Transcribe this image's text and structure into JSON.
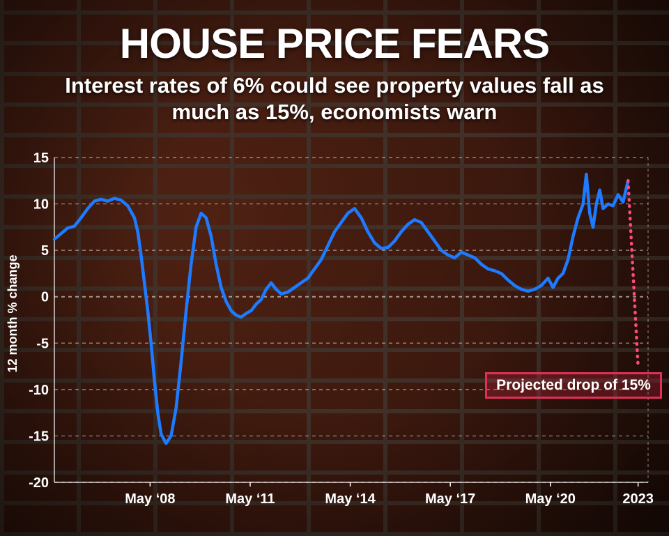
{
  "header": {
    "title": "HOUSE PRICE FEARS",
    "subtitle": "Interest rates of 6% could see property values fall as much as 15%, economists warn"
  },
  "annotation": {
    "label": "Projected drop of 15%"
  },
  "colors": {
    "line": "#1e7bff",
    "projection": "#ff4a78",
    "annotation_border": "#e0305a",
    "text": "#ffffff"
  },
  "chart_data": {
    "type": "line",
    "title": "HOUSE PRICE FEARS",
    "ylabel": "12 month % change",
    "xlabel": "",
    "ylim": [
      -20,
      15
    ],
    "yticks": [
      15,
      10,
      5,
      0,
      -5,
      -10,
      -15,
      -20
    ],
    "xticks": [
      {
        "label": "May ‘08",
        "x": 2008.37
      },
      {
        "label": "May ‘11",
        "x": 2011.37
      },
      {
        "label": "May ‘14",
        "x": 2014.37
      },
      {
        "label": "May ‘17",
        "x": 2017.37
      },
      {
        "label": "May ‘20",
        "x": 2020.37
      },
      {
        "label": "2023",
        "x": 2023.0
      }
    ],
    "xlim": [
      2005.5,
      2023.3
    ],
    "grid": "dashed horizontal",
    "series": [
      {
        "points": [
          [
            2005.5,
            6.2
          ],
          [
            2005.7,
            6.8
          ],
          [
            2005.9,
            7.4
          ],
          [
            2006.1,
            7.6
          ],
          [
            2006.3,
            8.5
          ],
          [
            2006.5,
            9.5
          ],
          [
            2006.7,
            10.3
          ],
          [
            2006.9,
            10.5
          ],
          [
            2007.1,
            10.3
          ],
          [
            2007.3,
            10.6
          ],
          [
            2007.5,
            10.4
          ],
          [
            2007.7,
            9.8
          ],
          [
            2007.9,
            8.5
          ],
          [
            2008.0,
            7.0
          ],
          [
            2008.1,
            4.5
          ],
          [
            2008.2,
            1.5
          ],
          [
            2008.3,
            -1.5
          ],
          [
            2008.4,
            -5.0
          ],
          [
            2008.5,
            -9.0
          ],
          [
            2008.6,
            -12.5
          ],
          [
            2008.7,
            -14.8
          ],
          [
            2008.85,
            -15.8
          ],
          [
            2009.0,
            -15.0
          ],
          [
            2009.15,
            -12.0
          ],
          [
            2009.3,
            -7.0
          ],
          [
            2009.45,
            -1.5
          ],
          [
            2009.6,
            3.5
          ],
          [
            2009.75,
            7.5
          ],
          [
            2009.9,
            9.0
          ],
          [
            2010.05,
            8.5
          ],
          [
            2010.2,
            6.5
          ],
          [
            2010.35,
            3.5
          ],
          [
            2010.5,
            1.0
          ],
          [
            2010.65,
            -0.5
          ],
          [
            2010.8,
            -1.5
          ],
          [
            2010.95,
            -2.0
          ],
          [
            2011.1,
            -2.2
          ],
          [
            2011.25,
            -1.8
          ],
          [
            2011.4,
            -1.5
          ],
          [
            2011.55,
            -0.8
          ],
          [
            2011.7,
            -0.3
          ],
          [
            2011.85,
            0.8
          ],
          [
            2012.0,
            1.5
          ],
          [
            2012.15,
            0.8
          ],
          [
            2012.3,
            0.3
          ],
          [
            2012.5,
            0.5
          ],
          [
            2012.7,
            1.0
          ],
          [
            2012.9,
            1.5
          ],
          [
            2013.1,
            2.0
          ],
          [
            2013.3,
            3.0
          ],
          [
            2013.5,
            4.0
          ],
          [
            2013.7,
            5.5
          ],
          [
            2013.9,
            7.0
          ],
          [
            2014.1,
            8.0
          ],
          [
            2014.3,
            9.0
          ],
          [
            2014.5,
            9.5
          ],
          [
            2014.7,
            8.5
          ],
          [
            2014.9,
            7.0
          ],
          [
            2015.1,
            5.8
          ],
          [
            2015.3,
            5.2
          ],
          [
            2015.5,
            5.3
          ],
          [
            2015.7,
            6.0
          ],
          [
            2015.9,
            7.0
          ],
          [
            2016.1,
            7.8
          ],
          [
            2016.3,
            8.3
          ],
          [
            2016.5,
            8.0
          ],
          [
            2016.7,
            7.0
          ],
          [
            2016.9,
            6.0
          ],
          [
            2017.1,
            5.0
          ],
          [
            2017.3,
            4.5
          ],
          [
            2017.5,
            4.2
          ],
          [
            2017.7,
            4.8
          ],
          [
            2017.9,
            4.5
          ],
          [
            2018.1,
            4.2
          ],
          [
            2018.3,
            3.5
          ],
          [
            2018.5,
            3.0
          ],
          [
            2018.7,
            2.8
          ],
          [
            2018.9,
            2.5
          ],
          [
            2019.1,
            1.8
          ],
          [
            2019.3,
            1.2
          ],
          [
            2019.5,
            0.8
          ],
          [
            2019.7,
            0.6
          ],
          [
            2019.9,
            0.8
          ],
          [
            2020.1,
            1.2
          ],
          [
            2020.3,
            2.0
          ],
          [
            2020.45,
            1.0
          ],
          [
            2020.6,
            2.0
          ],
          [
            2020.75,
            2.5
          ],
          [
            2020.9,
            4.0
          ],
          [
            2021.05,
            6.5
          ],
          [
            2021.2,
            8.5
          ],
          [
            2021.35,
            10.0
          ],
          [
            2021.45,
            13.2
          ],
          [
            2021.55,
            9.0
          ],
          [
            2021.65,
            7.5
          ],
          [
            2021.75,
            10.0
          ],
          [
            2021.85,
            11.5
          ],
          [
            2021.95,
            9.5
          ],
          [
            2022.1,
            10.0
          ],
          [
            2022.25,
            9.8
          ],
          [
            2022.4,
            11.0
          ],
          [
            2022.55,
            10.2
          ],
          [
            2022.7,
            12.5
          ]
        ]
      },
      {
        "points": [
          [
            2022.7,
            12.5
          ],
          [
            2023.0,
            -7.5
          ]
        ]
      }
    ]
  }
}
